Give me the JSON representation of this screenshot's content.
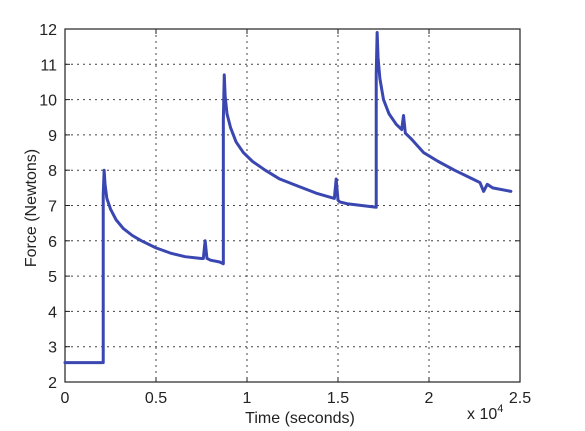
{
  "chart_data": {
    "type": "line",
    "title": "",
    "xlabel": "Time (seconds)",
    "ylabel": "Force (Newtons)",
    "x_multiplier_label": "x 10",
    "x_multiplier_exponent": "4",
    "xlim": [
      0,
      2.5
    ],
    "ylim": [
      2,
      12
    ],
    "xticks": [
      0,
      0.5,
      1,
      1.5,
      2,
      2.5
    ],
    "xtick_labels": [
      "0",
      "0.5",
      "1",
      "1.5",
      "2",
      "2.5"
    ],
    "yticks": [
      2,
      3,
      4,
      5,
      6,
      7,
      8,
      9,
      10,
      11,
      12
    ],
    "ytick_labels": [
      "2",
      "3",
      "4",
      "5",
      "6",
      "7",
      "8",
      "9",
      "10",
      "11",
      "12"
    ],
    "grid": true,
    "color": "#3a47b0",
    "series": [
      {
        "x": [
          0,
          0.21,
          0.21,
          0.215,
          0.22,
          0.23,
          0.25,
          0.28,
          0.32,
          0.37,
          0.42,
          0.5,
          0.58,
          0.66,
          0.75,
          0.76,
          0.77,
          0.78,
          0.8,
          0.85,
          0.87,
          0.87,
          0.875,
          0.88,
          0.89,
          0.91,
          0.94,
          0.98,
          1.03,
          1.1,
          1.18,
          1.28,
          1.38,
          1.48,
          1.49,
          1.5,
          1.51,
          1.55,
          1.63,
          1.71,
          1.71,
          1.715,
          1.72,
          1.73,
          1.75,
          1.78,
          1.82,
          1.85,
          1.86,
          1.87,
          1.9,
          1.97,
          2.05,
          2.14,
          2.24,
          2.28,
          2.3,
          2.32,
          2.35,
          2.45
        ],
        "y": [
          2.55,
          2.55,
          7.3,
          8.0,
          7.6,
          7.2,
          6.9,
          6.6,
          6.35,
          6.15,
          6.0,
          5.8,
          5.65,
          5.55,
          5.5,
          5.5,
          6.0,
          5.5,
          5.45,
          5.4,
          5.35,
          9.4,
          10.7,
          10.1,
          9.6,
          9.2,
          8.8,
          8.5,
          8.25,
          8.0,
          7.75,
          7.55,
          7.35,
          7.2,
          7.75,
          7.15,
          7.1,
          7.05,
          7.0,
          6.95,
          10.7,
          11.9,
          11.2,
          10.6,
          10.0,
          9.6,
          9.3,
          9.15,
          9.55,
          9.05,
          8.9,
          8.5,
          8.25,
          8.0,
          7.75,
          7.65,
          7.4,
          7.6,
          7.5,
          7.4
        ]
      }
    ]
  }
}
